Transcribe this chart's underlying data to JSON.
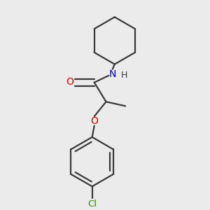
{
  "bg_color": "#ebebeb",
  "bond_color": "#3a3a3a",
  "O_color": "#dd0000",
  "N_color": "#0000cc",
  "Cl_color": "#338800",
  "line_width": 1.6,
  "figsize": [
    3.0,
    3.0
  ],
  "dpi": 100,
  "xlim": [
    0.1,
    0.9
  ],
  "ylim": [
    0.03,
    0.97
  ]
}
